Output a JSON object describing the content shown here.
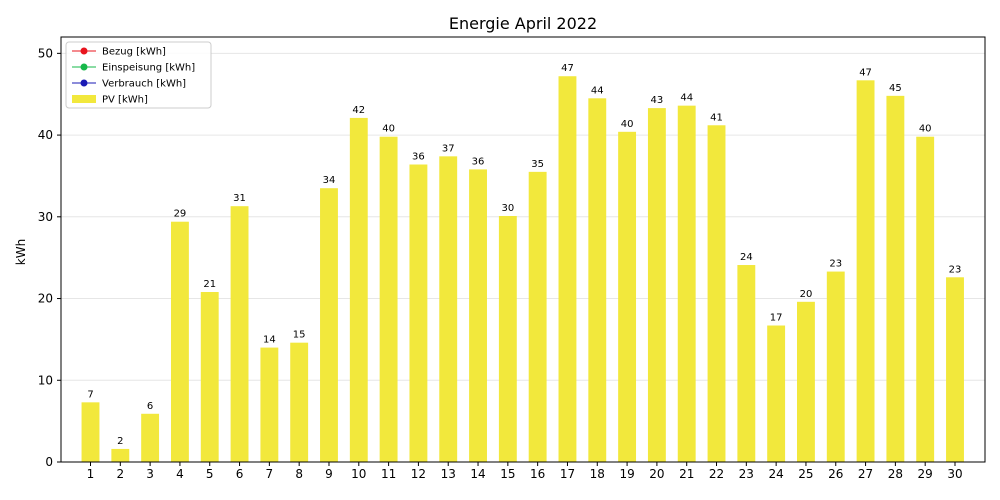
{
  "chart_data": {
    "type": "bar",
    "title": "Energie April 2022",
    "xlabel": "",
    "ylabel": "kWh",
    "ylim": [
      0,
      52
    ],
    "yticks": [
      0,
      10,
      20,
      30,
      40,
      50
    ],
    "grid": "horizontal",
    "legend_position": "top-left",
    "categories": [
      "1",
      "2",
      "3",
      "4",
      "5",
      "6",
      "7",
      "8",
      "9",
      "10",
      "11",
      "12",
      "13",
      "14",
      "15",
      "16",
      "17",
      "18",
      "19",
      "20",
      "21",
      "22",
      "23",
      "24",
      "25",
      "26",
      "27",
      "28",
      "29",
      "30"
    ],
    "series": [
      {
        "name": "PV [kWh]",
        "color": "#f2e83c",
        "values": [
          7.3,
          1.6,
          5.9,
          29.4,
          20.8,
          31.3,
          14.0,
          14.6,
          33.5,
          42.1,
          39.8,
          36.4,
          37.4,
          35.8,
          30.1,
          35.5,
          47.2,
          44.5,
          40.4,
          43.3,
          43.6,
          41.2,
          24.1,
          16.7,
          19.6,
          23.3,
          46.7,
          44.8,
          39.8,
          22.6
        ],
        "labels": [
          "7",
          "2",
          "6",
          "29",
          "21",
          "31",
          "14",
          "15",
          "34",
          "42",
          "40",
          "36",
          "37",
          "36",
          "30",
          "35",
          "47",
          "44",
          "40",
          "43",
          "44",
          "41",
          "24",
          "17",
          "20",
          "23",
          "47",
          "45",
          "40",
          "23"
        ]
      }
    ],
    "legend": [
      {
        "label": "Bezug [kWh]",
        "kind": "line",
        "color": "#e8141e"
      },
      {
        "label": "Einspeisung [kWh]",
        "kind": "line",
        "color": "#16b84a"
      },
      {
        "label": "Verbrauch [kWh]",
        "kind": "line",
        "color": "#1a1ab4"
      },
      {
        "label": "PV [kWh]",
        "kind": "bar",
        "color": "#f2e83c"
      }
    ]
  }
}
